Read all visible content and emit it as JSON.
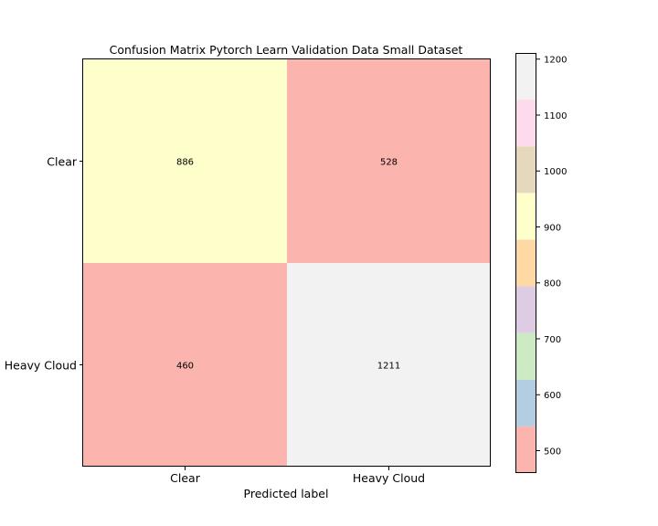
{
  "chart_data": {
    "type": "heatmap",
    "title": "Confusion Matrix Pytorch Learn Validation Data Small Dataset",
    "xlabel": "Predicted label",
    "ylabel": "",
    "x_categories": [
      "Clear",
      "Heavy Cloud"
    ],
    "y_categories": [
      "Clear",
      "Heavy Cloud"
    ],
    "values": [
      [
        886,
        528
      ],
      [
        460,
        1211
      ]
    ],
    "colormap": "Pastel1",
    "colorbar": {
      "range": [
        460,
        1211
      ],
      "ticks": [
        500,
        600,
        700,
        800,
        900,
        1000,
        1100,
        1200
      ],
      "colors": [
        "#fbb4ae",
        "#b3cde3",
        "#ccebc5",
        "#decbe4",
        "#fed9a6",
        "#ffffcc",
        "#e5d8bd",
        "#fddaec",
        "#f2f2f2"
      ]
    },
    "grid": false
  }
}
